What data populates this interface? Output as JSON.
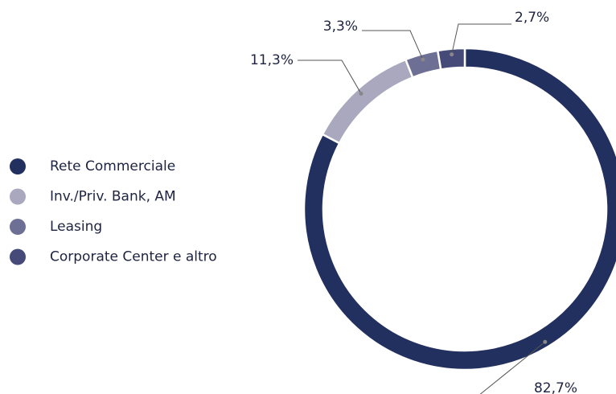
{
  "chart_data": {
    "type": "donut",
    "categories": [
      "Rete Commerciale",
      "Inv./Priv. Bank, AM",
      "Leasing",
      "Corporate Center e altro"
    ],
    "values": [
      82.7,
      11.3,
      3.3,
      2.7
    ],
    "value_labels": [
      "82,7%",
      "11,3%",
      "3,3%",
      "2,7%"
    ],
    "colors": [
      "#22305f",
      "#a9a8bf",
      "#6e6f94",
      "#454a78"
    ],
    "legend": "left"
  }
}
